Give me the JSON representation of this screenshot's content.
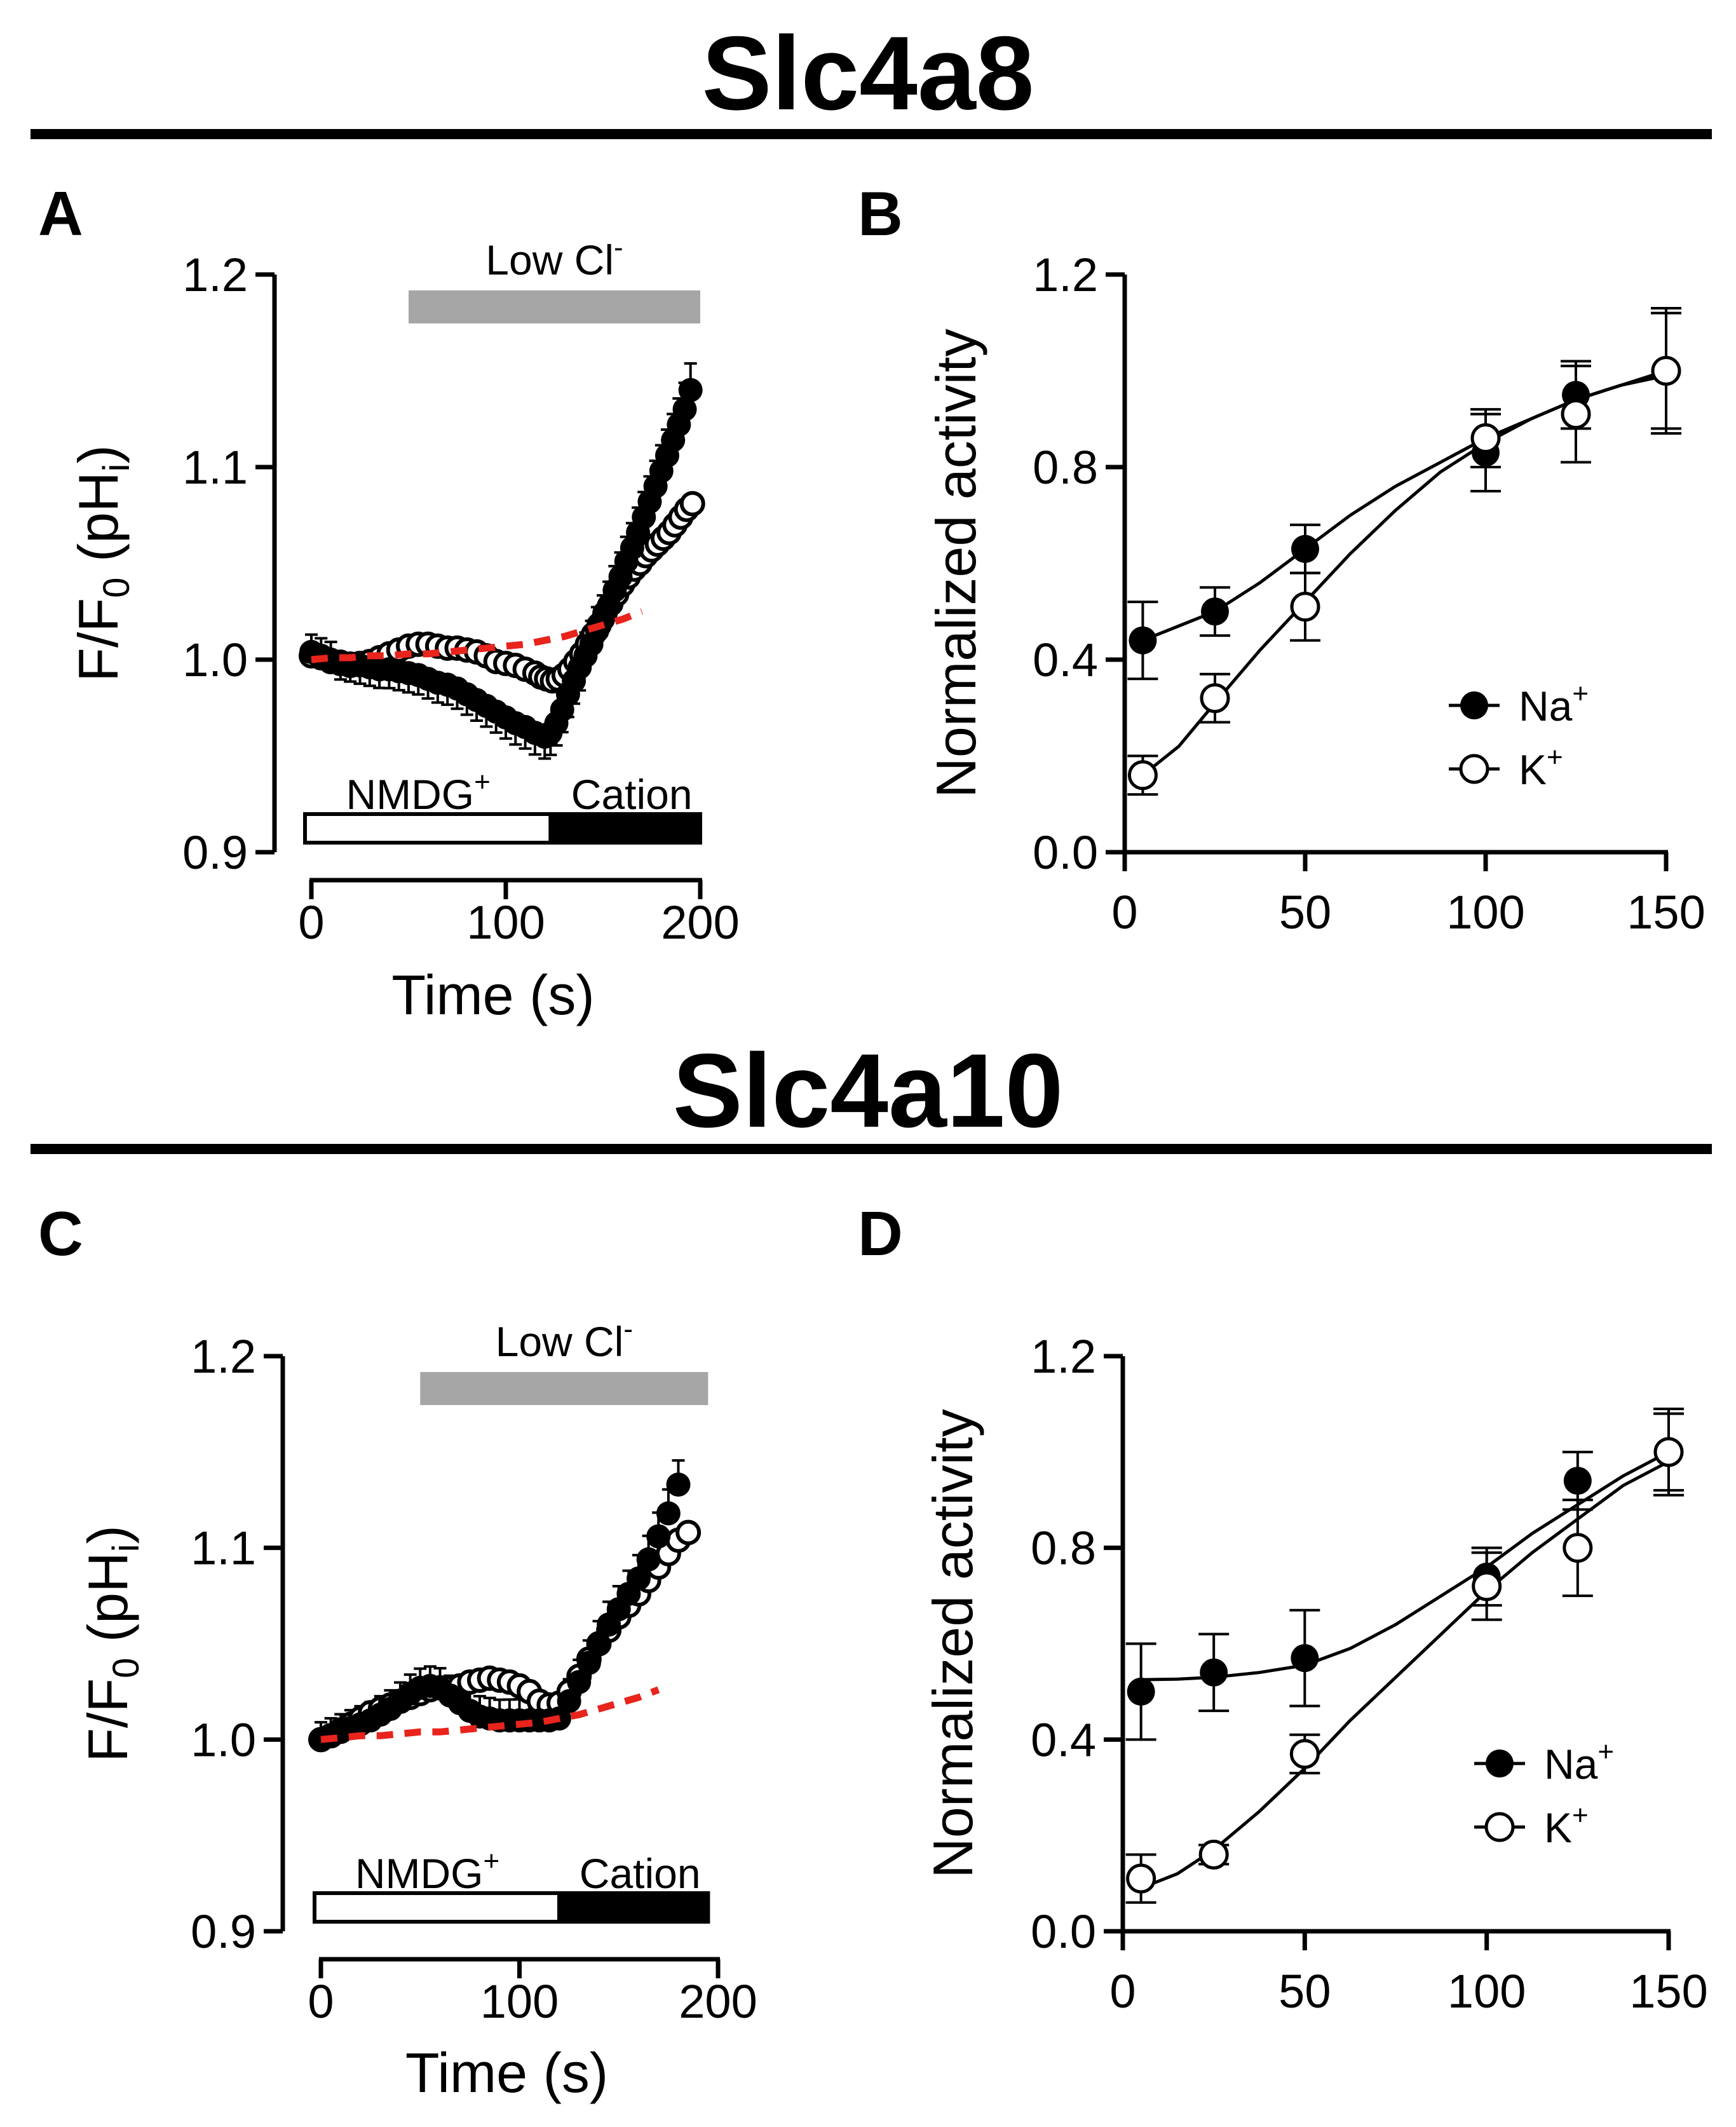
{
  "titles": {
    "top": "Slc4a8",
    "bottom": "Slc4a10"
  },
  "panels": {
    "a": "A",
    "b": "B",
    "c": "C",
    "d": "D"
  },
  "chart_data": [
    {
      "id": "A",
      "type": "scatter",
      "xlabel": "Time (s)",
      "ylabel": "F/F0 (pHi)",
      "xlim": [
        0,
        200
      ],
      "ylim": [
        0.9,
        1.2
      ],
      "xticks": [
        "0",
        "100",
        "200"
      ],
      "yticks": [
        "0.9",
        "1.0",
        "1.1",
        "1.2"
      ],
      "bars": {
        "low_cl": {
          "label": "Low Cl",
          "sup": "-",
          "start": 50,
          "end": 200
        },
        "nmdg": {
          "label": "NMDG",
          "sup": "+",
          "start": 0,
          "end": 123
        },
        "cation": {
          "label": "Cation",
          "start": 123,
          "end": 200
        }
      },
      "series": [
        {
          "name": "Na+ (filled)",
          "x": [
            0,
            5,
            10,
            15,
            20,
            25,
            30,
            35,
            40,
            45,
            50,
            55,
            60,
            65,
            70,
            75,
            80,
            85,
            90,
            95,
            100,
            105,
            110,
            115,
            120,
            123,
            126,
            129,
            132,
            135,
            138,
            141,
            144,
            147,
            150,
            153,
            156,
            159,
            162,
            165,
            168,
            171,
            174,
            177,
            180,
            183,
            186,
            189,
            192,
            195
          ],
          "y": [
            1.004,
            1.002,
            1.0,
            0.999,
            0.998,
            0.997,
            0.996,
            0.995,
            0.995,
            0.994,
            0.993,
            0.992,
            0.99,
            0.988,
            0.987,
            0.985,
            0.982,
            0.979,
            0.976,
            0.973,
            0.97,
            0.967,
            0.965,
            0.962,
            0.96,
            0.962,
            0.967,
            0.974,
            0.982,
            0.989,
            0.996,
            1.002,
            1.008,
            1.015,
            1.021,
            1.028,
            1.036,
            1.043,
            1.051,
            1.058,
            1.066,
            1.074,
            1.082,
            1.09,
            1.098,
            1.106,
            1.114,
            1.122,
            1.13,
            1.14
          ]
        },
        {
          "name": "K+ (open)",
          "x": [
            0,
            5,
            10,
            15,
            20,
            25,
            30,
            35,
            40,
            45,
            50,
            55,
            60,
            65,
            70,
            75,
            80,
            85,
            90,
            95,
            100,
            105,
            110,
            115,
            118,
            121,
            124,
            127,
            130,
            133,
            136,
            139,
            142,
            145,
            148,
            151,
            154,
            157,
            160,
            163,
            166,
            169,
            172,
            175,
            178,
            181,
            184,
            187,
            190,
            193,
            196
          ],
          "y": [
            1.002,
            1.001,
            0.999,
            0.998,
            0.997,
            0.998,
            0.999,
            1.001,
            1.003,
            1.005,
            1.007,
            1.008,
            1.008,
            1.007,
            1.006,
            1.006,
            1.005,
            1.004,
            1.002,
            0.999,
            0.998,
            0.997,
            0.995,
            0.993,
            0.991,
            0.99,
            0.989,
            0.99,
            0.992,
            0.995,
            0.999,
            1.003,
            1.008,
            1.013,
            1.018,
            1.024,
            1.029,
            1.034,
            1.039,
            1.043,
            1.047,
            1.05,
            1.054,
            1.057,
            1.06,
            1.063,
            1.066,
            1.07,
            1.074,
            1.078,
            1.081
          ]
        },
        {
          "name": "control (red dashed)",
          "x": [
            0,
            10,
            20,
            30,
            40,
            50,
            60,
            70,
            80,
            90,
            100,
            110,
            120,
            130,
            140,
            150,
            160,
            170
          ],
          "y": [
            1.0,
            1.001,
            1.001,
            1.002,
            1.002,
            1.003,
            1.003,
            1.004,
            1.005,
            1.006,
            1.007,
            1.008,
            1.01,
            1.012,
            1.015,
            1.018,
            1.021,
            1.025
          ]
        }
      ]
    },
    {
      "id": "B",
      "type": "scatter",
      "xlabel": "",
      "ylabel": "Normalized activity",
      "xlim": [
        0,
        150
      ],
      "ylim": [
        0.0,
        1.2
      ],
      "xticks": [
        "0",
        "50",
        "100",
        "150"
      ],
      "yticks": [
        "0.0",
        "0.4",
        "0.8",
        "1.2"
      ],
      "legend": {
        "position": "right",
        "entries": [
          {
            "label": "Na",
            "sup": "+"
          },
          {
            "label": "K",
            "sup": "+"
          }
        ]
      },
      "series": [
        {
          "name": "Na+",
          "x": [
            5,
            25,
            50,
            100,
            125,
            150
          ],
          "y": [
            0.44,
            0.5,
            0.63,
            0.83,
            0.95,
            1.0
          ],
          "err": [
            0.08,
            0.05,
            0.05,
            0.08,
            0.07,
            0.13
          ]
        },
        {
          "name": "K+",
          "x": [
            5,
            25,
            50,
            100,
            125,
            150
          ],
          "y": [
            0.16,
            0.32,
            0.51,
            0.86,
            0.91,
            1.0
          ],
          "err": [
            0.04,
            0.05,
            0.07,
            0.06,
            0.1,
            0.12
          ]
        }
      ],
      "fits": [
        {
          "name": "Na+ fit",
          "x": [
            5,
            15,
            25,
            37.5,
            50,
            62.5,
            75,
            87.5,
            100,
            112.5,
            125,
            137.5,
            150
          ],
          "y": [
            0.44,
            0.47,
            0.5,
            0.56,
            0.63,
            0.7,
            0.76,
            0.81,
            0.86,
            0.9,
            0.94,
            0.97,
            1.0
          ]
        },
        {
          "name": "K+ fit",
          "x": [
            5,
            15,
            25,
            37.5,
            50,
            62.5,
            75,
            87.5,
            100,
            112.5,
            125,
            137.5,
            150
          ],
          "y": [
            0.16,
            0.22,
            0.31,
            0.42,
            0.52,
            0.62,
            0.71,
            0.79,
            0.85,
            0.9,
            0.94,
            0.97,
            0.99
          ]
        }
      ]
    },
    {
      "id": "C",
      "type": "scatter",
      "xlabel": "Time (s)",
      "ylabel": "F/F0 (pHi)",
      "xlim": [
        0,
        200
      ],
      "ylim": [
        0.9,
        1.2
      ],
      "xticks": [
        "0",
        "100",
        "200"
      ],
      "yticks": [
        "0.9",
        "1.0",
        "1.1",
        "1.2"
      ],
      "bars": {
        "low_cl": {
          "label": "Low Cl",
          "sup": "-",
          "start": 50,
          "end": 195
        },
        "nmdg": {
          "label": "NMDG",
          "sup": "+",
          "start": 0,
          "end": 120
        },
        "cation": {
          "label": "Cation",
          "start": 120,
          "end": 195
        }
      },
      "series": [
        {
          "name": "Na+ (filled)",
          "x": [
            0,
            5,
            10,
            15,
            20,
            25,
            30,
            35,
            40,
            45,
            50,
            55,
            60,
            65,
            70,
            75,
            80,
            85,
            90,
            95,
            100,
            105,
            110,
            115,
            120,
            125,
            130,
            135,
            140,
            145,
            150,
            155,
            160,
            165,
            170,
            175,
            180
          ],
          "y": [
            1.0,
            1.002,
            1.004,
            1.006,
            1.008,
            1.01,
            1.013,
            1.016,
            1.02,
            1.024,
            1.027,
            1.028,
            1.027,
            1.023,
            1.019,
            1.015,
            1.012,
            1.011,
            1.01,
            1.01,
            1.01,
            1.01,
            1.01,
            1.01,
            1.011,
            1.02,
            1.03,
            1.04,
            1.05,
            1.06,
            1.068,
            1.076,
            1.084,
            1.094,
            1.106,
            1.118,
            1.133
          ]
        },
        {
          "name": "K+ (open)",
          "x": [
            0,
            5,
            10,
            15,
            20,
            25,
            30,
            35,
            40,
            45,
            50,
            55,
            60,
            65,
            70,
            75,
            80,
            85,
            90,
            95,
            100,
            105,
            110,
            115,
            120,
            125,
            130,
            135,
            140,
            145,
            150,
            155,
            160,
            165,
            170,
            175,
            180,
            185
          ],
          "y": [
            1.0,
            1.002,
            1.005,
            1.008,
            1.011,
            1.014,
            1.016,
            1.018,
            1.02,
            1.022,
            1.024,
            1.026,
            1.027,
            1.027,
            1.028,
            1.03,
            1.031,
            1.032,
            1.031,
            1.03,
            1.028,
            1.025,
            1.02,
            1.018,
            1.019,
            1.025,
            1.033,
            1.042,
            1.05,
            1.057,
            1.064,
            1.07,
            1.076,
            1.083,
            1.09,
            1.097,
            1.104,
            1.108
          ]
        },
        {
          "name": "control (red dashed)",
          "x": [
            0,
            10,
            20,
            30,
            40,
            50,
            60,
            70,
            80,
            90,
            100,
            110,
            120,
            130,
            140,
            150,
            160,
            170
          ],
          "y": [
            1.0,
            1.001,
            1.002,
            1.002,
            1.003,
            1.004,
            1.004,
            1.005,
            1.006,
            1.007,
            1.008,
            1.009,
            1.011,
            1.013,
            1.016,
            1.019,
            1.022,
            1.026
          ]
        }
      ]
    },
    {
      "id": "D",
      "type": "scatter",
      "xlabel": "",
      "ylabel": "Normalized activity",
      "xlim": [
        0,
        150
      ],
      "ylim": [
        0.0,
        1.2
      ],
      "xticks": [
        "0",
        "50",
        "100",
        "150"
      ],
      "yticks": [
        "0.0",
        "0.4",
        "0.8",
        "1.2"
      ],
      "legend": {
        "position": "right",
        "entries": [
          {
            "label": "Na",
            "sup": "+"
          },
          {
            "label": "K",
            "sup": "+"
          }
        ]
      },
      "series": [
        {
          "name": "Na+",
          "x": [
            5,
            25,
            50,
            100,
            125,
            150
          ],
          "y": [
            0.5,
            0.54,
            0.57,
            0.74,
            0.94,
            1.0
          ],
          "err": [
            0.1,
            0.08,
            0.1,
            0.06,
            0.06,
            0.09
          ]
        },
        {
          "name": "K+",
          "x": [
            5,
            25,
            50,
            100,
            125,
            150
          ],
          "y": [
            0.11,
            0.16,
            0.37,
            0.72,
            0.8,
            1.0
          ],
          "err": [
            0.05,
            0.02,
            0.04,
            0.07,
            0.1,
            0.08
          ]
        }
      ],
      "fits": [
        {
          "name": "Na+ fit",
          "x": [
            5,
            15,
            25,
            37.5,
            50,
            62.5,
            75,
            87.5,
            100,
            112.5,
            125,
            137.5,
            150
          ],
          "y": [
            0.525,
            0.526,
            0.53,
            0.54,
            0.555,
            0.59,
            0.64,
            0.7,
            0.76,
            0.83,
            0.89,
            0.95,
            1.0
          ]
        },
        {
          "name": "K+ fit",
          "x": [
            5,
            15,
            25,
            37.5,
            50,
            62.5,
            75,
            87.5,
            100,
            112.5,
            125,
            137.5,
            150
          ],
          "y": [
            0.09,
            0.12,
            0.17,
            0.25,
            0.34,
            0.44,
            0.53,
            0.62,
            0.71,
            0.79,
            0.86,
            0.93,
            0.98
          ]
        }
      ]
    }
  ]
}
